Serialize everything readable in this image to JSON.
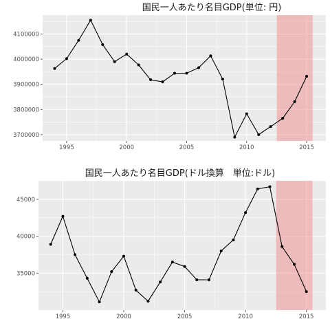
{
  "chart_data": [
    {
      "type": "line",
      "title": "国民一人あたり名目GDP(単位: 円)",
      "xlabel": "",
      "ylabel": "",
      "x": [
        1994,
        1995,
        1996,
        1997,
        1998,
        1999,
        2000,
        2001,
        2002,
        2003,
        2004,
        2005,
        2006,
        2007,
        2008,
        2009,
        2010,
        2011,
        2012,
        2013,
        2014,
        2015
      ],
      "series": [
        {
          "values": [
            3963000,
            4002000,
            4075000,
            4155000,
            4058000,
            3990000,
            4020000,
            3977000,
            3918000,
            3910000,
            3944000,
            3944000,
            3966000,
            4013000,
            3921000,
            3690000,
            3783000,
            3700000,
            3732000,
            3765000,
            3831000,
            3932000
          ]
        }
      ],
      "xlim": [
        1993.0,
        2016.6
      ],
      "ylim": [
        3675000,
        4175000
      ],
      "x_ticks": [
        1995,
        2000,
        2005,
        2010,
        2015
      ],
      "y_ticks": [
        3700000,
        3800000,
        3900000,
        4000000,
        4100000
      ],
      "x_tick_labels": [
        "1995",
        "2000",
        "2005",
        "2010",
        "2015"
      ],
      "y_tick_labels": [
        "3700000",
        "3800000",
        "3900000",
        "4000000",
        "4100000"
      ],
      "highlight": {
        "from": 2012.5,
        "to": 2015.5,
        "color": "#f08080"
      },
      "grid": true,
      "colors": {
        "panel": "#ebebeb",
        "grid": "#ffffff",
        "line": "#000000"
      }
    },
    {
      "type": "line",
      "title": "国民一人あたり名目GDP(ドル換算　単位:ドル)",
      "xlabel": "",
      "ylabel": "",
      "x": [
        1994,
        1995,
        1996,
        1997,
        1998,
        1999,
        2000,
        2001,
        2002,
        2003,
        2004,
        2005,
        2006,
        2007,
        2008,
        2009,
        2010,
        2011,
        2012,
        2013,
        2014,
        2015
      ],
      "series": [
        {
          "values": [
            38900,
            42700,
            37500,
            34300,
            31100,
            35200,
            37300,
            32700,
            31200,
            33800,
            36500,
            35900,
            34100,
            34100,
            38000,
            39500,
            43200,
            46400,
            46700,
            38600,
            36200,
            32500
          ]
        }
      ],
      "xlim": [
        1993.0,
        2016.6
      ],
      "ylim": [
        30000,
        47500
      ],
      "x_ticks": [
        1995,
        2000,
        2005,
        2010,
        2015
      ],
      "y_ticks": [
        35000,
        40000,
        45000
      ],
      "x_tick_labels": [
        "1995",
        "2000",
        "2005",
        "2010",
        "2015"
      ],
      "y_tick_labels": [
        "35000",
        "40000",
        "45000"
      ],
      "highlight": {
        "from": 2012.5,
        "to": 2015.5,
        "color": "#f08080"
      },
      "grid": true,
      "colors": {
        "panel": "#ebebeb",
        "grid": "#ffffff",
        "line": "#000000"
      }
    }
  ]
}
